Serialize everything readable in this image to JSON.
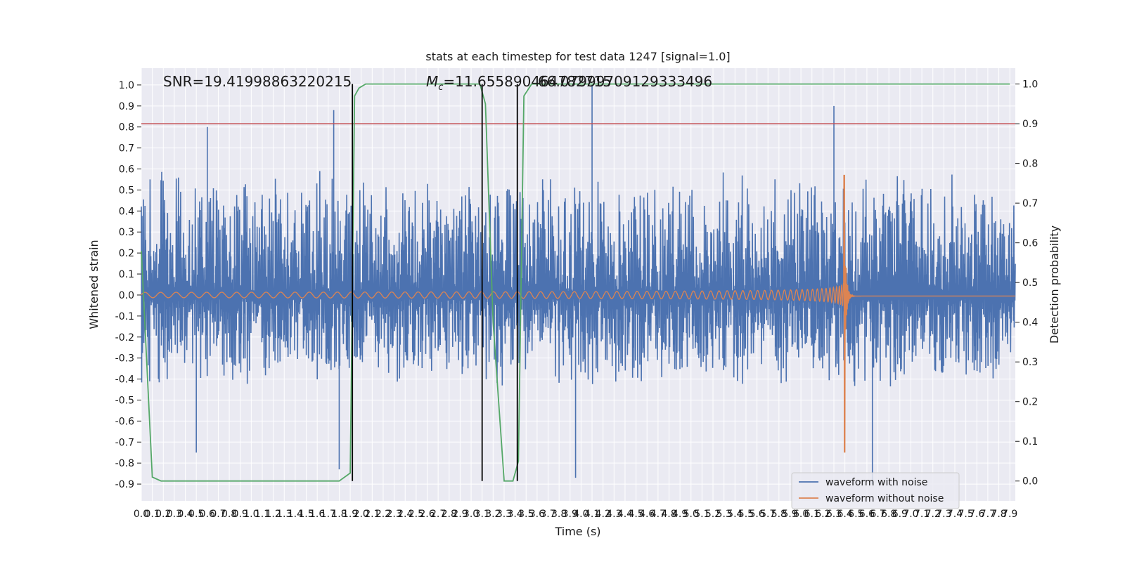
{
  "chart_data": {
    "type": "line",
    "title": "stats at each timestep for test data 1247 [signal=1.0]",
    "xlabel": "Time (s)",
    "ylabel_left": "Whitened strain",
    "ylabel_right": "Detection probability",
    "xlim": [
      0.0,
      7.95
    ],
    "ylim_left": [
      -0.98,
      1.08
    ],
    "ylim_right": [
      -0.05,
      1.04
    ],
    "x_ticks": [
      "0.0",
      "0.1",
      "0.2",
      "0.3",
      "0.4",
      "0.5",
      "0.6",
      "0.7",
      "0.8",
      "0.9",
      "1.0",
      "1.1",
      "1.2",
      "1.3",
      "1.4",
      "1.5",
      "1.6",
      "1.7",
      "1.8",
      "1.9",
      "2.0",
      "2.1",
      "2.2",
      "2.3",
      "2.4",
      "2.5",
      "2.6",
      "2.7",
      "2.8",
      "2.9",
      "3.0",
      "3.1",
      "3.2",
      "3.3",
      "3.4",
      "3.5",
      "3.6",
      "3.7",
      "3.8",
      "3.9",
      "4.0",
      "4.1",
      "4.2",
      "4.3",
      "4.4",
      "4.5",
      "4.6",
      "4.7",
      "4.8",
      "4.9",
      "5.0",
      "5.1",
      "5.2",
      "5.3",
      "5.4",
      "5.5",
      "5.6",
      "5.7",
      "5.8",
      "5.9",
      "6.0",
      "6.1",
      "6.2",
      "6.3",
      "6.4",
      "6.5",
      "6.6",
      "6.7",
      "6.8",
      "6.9",
      "7.0",
      "7.1",
      "7.2",
      "7.3",
      "7.4",
      "7.5",
      "7.6",
      "7.7",
      "7.8",
      "7.9"
    ],
    "y_ticks_left": [
      "-0.9",
      "-0.8",
      "-0.7",
      "-0.6",
      "-0.5",
      "-0.4",
      "-0.3",
      "-0.2",
      "-0.1",
      "0.0",
      "0.1",
      "0.2",
      "0.3",
      "0.4",
      "0.5",
      "0.6",
      "0.7",
      "0.8",
      "0.9",
      "1.0"
    ],
    "y_ticks_right": [
      "0.0",
      "0.1",
      "0.2",
      "0.3",
      "0.4",
      "0.5",
      "0.6",
      "0.7",
      "0.8",
      "0.9",
      "1.0"
    ],
    "annotations": {
      "snr": "SNR=19.41998863220215",
      "mc_prefix": "M",
      "mc_sub": "c",
      "mc_value": "=11.655890464782715",
      "mc_overlap": "66.07999709129333496"
    },
    "threshold_right": 0.9,
    "vertical_lines_x": [
      1.92,
      3.1,
      3.42
    ],
    "noise": {
      "envelope_top": 0.6,
      "envelope_bottom": -0.45,
      "peaks": [
        {
          "x": 0.6,
          "y": 0.8
        },
        {
          "x": 1.75,
          "y": 0.88
        },
        {
          "x": 4.1,
          "y": 1.0
        },
        {
          "x": 6.3,
          "y": 0.9
        },
        {
          "x": 1.8,
          "y": -0.83
        },
        {
          "x": 3.95,
          "y": -0.87
        },
        {
          "x": 6.65,
          "y": -0.9
        },
        {
          "x": 0.5,
          "y": -0.75
        }
      ]
    },
    "merger_x": 6.4,
    "chirp_peak_amplitude": 0.57,
    "chirp_min_amplitude": -0.75,
    "detection_probability": {
      "x": [
        0.0,
        0.1,
        0.18,
        1.8,
        1.9,
        1.94,
        1.98,
        2.04,
        3.08,
        3.13,
        3.2,
        3.3,
        3.38,
        3.43,
        3.48,
        3.55,
        7.9
      ],
      "y": [
        0.58,
        0.01,
        0.0,
        0.0,
        0.02,
        0.97,
        0.99,
        1.0,
        1.0,
        0.95,
        0.4,
        0.0,
        0.0,
        0.05,
        0.97,
        1.0,
        1.0
      ]
    },
    "series": [
      {
        "name": "waveform with noise",
        "color": "#4c72b0"
      },
      {
        "name": "waveform without noise",
        "color": "#dd8452"
      }
    ],
    "colors": {
      "probability": "#55a868",
      "threshold": "#c44e52",
      "vline": "#000000",
      "plot_bg": "#eaeaf2",
      "grid": "#ffffff"
    },
    "grid": true,
    "legend_position": "bottom-right"
  }
}
